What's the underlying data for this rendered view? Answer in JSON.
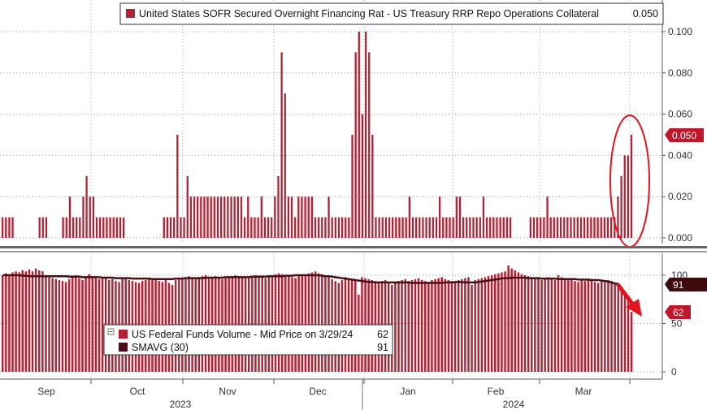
{
  "chart_data": [
    {
      "id": "top",
      "type": "bar",
      "title": "United States SOFR Secured Overnight Financing Rat - US Treasury RRP Repo Operations Collateral",
      "legend": [
        {
          "label": "United States SOFR Secured Overnight Financing Rat - US Treasury RRP Repo Operations Collateral",
          "value": "0.050",
          "color": "#b22234"
        }
      ],
      "last_value_tag": {
        "label": "0.050",
        "value": 0.05,
        "color": "#c0182b"
      },
      "ylim": [
        0,
        0.105
      ],
      "yticks": [
        0.0,
        0.02,
        0.04,
        0.06,
        0.08,
        0.1
      ],
      "ytick_labels": [
        "0.000",
        "0.020",
        "0.040",
        "0.060",
        "0.080",
        "0.100"
      ],
      "annotation": "red ellipse around latest spike",
      "values": [
        0.01,
        0.01,
        0.01,
        0.01,
        0,
        0,
        0,
        0,
        0,
        0,
        0,
        0.01,
        0.01,
        0.01,
        0,
        0,
        0,
        0,
        0.01,
        0.01,
        0.02,
        0.01,
        0.01,
        0.01,
        0.02,
        0.03,
        0.02,
        0.02,
        0.01,
        0.01,
        0.01,
        0.01,
        0.01,
        0.01,
        0.01,
        0.01,
        0.01,
        0,
        0,
        0,
        0,
        0,
        0,
        0,
        0,
        0,
        0,
        0,
        0.01,
        0.01,
        0.01,
        0.01,
        0.05,
        0.01,
        0.01,
        0.03,
        0.02,
        0.02,
        0.02,
        0.02,
        0.02,
        0.02,
        0.02,
        0.02,
        0.02,
        0.02,
        0.02,
        0.02,
        0.02,
        0.02,
        0.02,
        0.02,
        0.01,
        0.02,
        0.01,
        0.01,
        0.01,
        0.02,
        0.01,
        0.01,
        0.01,
        0.02,
        0.03,
        0.09,
        0.07,
        0.02,
        0.02,
        0.01,
        0.02,
        0.02,
        0.02,
        0.02,
        0.02,
        0.01,
        0.01,
        0.01,
        0.01,
        0.02,
        0.01,
        0.01,
        0.01,
        0.01,
        0.01,
        0.01,
        0.05,
        0.09,
        0.1,
        0.06,
        0.1,
        0.09,
        0.05,
        0.01,
        0.01,
        0.01,
        0.01,
        0.01,
        0.01,
        0.01,
        0.01,
        0.01,
        0.01,
        0.02,
        0.01,
        0.01,
        0.01,
        0.01,
        0.01,
        0.01,
        0.01,
        0.01,
        0.02,
        0.01,
        0.01,
        0.01,
        0.01,
        0.02,
        0.02,
        0.01,
        0.01,
        0.01,
        0.01,
        0.01,
        0.01,
        0.02,
        0.01,
        0.01,
        0.01,
        0.01,
        0.01,
        0.01,
        0.01,
        0.01,
        0,
        0,
        0,
        0,
        0,
        0.01,
        0.01,
        0.01,
        0.01,
        0.01,
        0.02,
        0.01,
        0.01,
        0.01,
        0.01,
        0.01,
        0.01,
        0.01,
        0.01,
        0.01,
        0.01,
        0.01,
        0.01,
        0.01,
        0.01,
        0.01,
        0.01,
        0.01,
        0.01,
        0.01,
        0.01,
        0.02,
        0.03,
        0.04,
        0.04,
        0.05
      ]
    },
    {
      "id": "bottom",
      "type": "bar",
      "legend": [
        {
          "label": "US Federal Funds Volume - Mid Price on 3/29/24",
          "value": "62",
          "color": "#b22234"
        },
        {
          "label": "SMAVG (30)",
          "value": "91",
          "color": "#4a0f14"
        }
      ],
      "last_value_tags": [
        {
          "label": "91",
          "value": 91,
          "color": "#3d0a0e"
        },
        {
          "label": "62",
          "value": 62,
          "color": "#c0182b"
        }
      ],
      "ylim": [
        -5,
        125
      ],
      "yticks": [
        0,
        50,
        100
      ],
      "ytick_labels": [
        "0",
        "50",
        "100"
      ],
      "annotation": "red arrow pointing down to latest value",
      "values": [
        100,
        102,
        101,
        103,
        104,
        103,
        105,
        104,
        106,
        104,
        107,
        105,
        104,
        100,
        98,
        97,
        96,
        95,
        94,
        93,
        96,
        98,
        100,
        97,
        95,
        98,
        101,
        99,
        97,
        96,
        98,
        97,
        95,
        96,
        94,
        93,
        97,
        96,
        95,
        94,
        93,
        92,
        94,
        95,
        96,
        97,
        95,
        94,
        93,
        95,
        92,
        90,
        95,
        96,
        97,
        98,
        99,
        97,
        96,
        98,
        99,
        100,
        98,
        97,
        99,
        98,
        96,
        97,
        98,
        99,
        100,
        99,
        98,
        97,
        98,
        99,
        100,
        99,
        98,
        97,
        99,
        100,
        101,
        102,
        101,
        100,
        99,
        98,
        97,
        99,
        100,
        101,
        102,
        103,
        104,
        102,
        101,
        100,
        98,
        96,
        94,
        92,
        95,
        98,
        97,
        95,
        96,
        80,
        98,
        97,
        96,
        95,
        94,
        93,
        94,
        95,
        92,
        90,
        93,
        94,
        95,
        96,
        94,
        95,
        96,
        97,
        95,
        94,
        93,
        95,
        96,
        97,
        98,
        96,
        95,
        94,
        93,
        95,
        96,
        97,
        98,
        90,
        95,
        96,
        97,
        98,
        99,
        100,
        101,
        102,
        103,
        104,
        110,
        107,
        105,
        103,
        101,
        100,
        99,
        98,
        97,
        96,
        95,
        97,
        98,
        96,
        95,
        100,
        98,
        97,
        95,
        96,
        94,
        93,
        95,
        94,
        96,
        95,
        93,
        92,
        94,
        93,
        95,
        94,
        92,
        91,
        88,
        80,
        75,
        62
      ],
      "sma": [
        100,
        100,
        100,
        100,
        100,
        100,
        99.5,
        99.5,
        99,
        99,
        99,
        99,
        99,
        99,
        99,
        99,
        99,
        99,
        99,
        99,
        98.5,
        98.5,
        98.5,
        98.5,
        98,
        98,
        98,
        98,
        98,
        98,
        97.5,
        97.5,
        97.5,
        97.5,
        97,
        97,
        97,
        97,
        97,
        96.5,
        96.5,
        96.5,
        96.5,
        96.5,
        96.5,
        96,
        96,
        96,
        96,
        96,
        96,
        96,
        96.5,
        96.5,
        96.5,
        97,
        97,
        97,
        97,
        97,
        97,
        97.5,
        97.5,
        97.5,
        97.5,
        97.5,
        97.5,
        98,
        98,
        98,
        98,
        98,
        98,
        98,
        98,
        98.5,
        98.5,
        98.5,
        98.5,
        98.5,
        99,
        99,
        99,
        99,
        99,
        99.5,
        99.5,
        99.5,
        100,
        100,
        100,
        100,
        100,
        100,
        100,
        100,
        99.5,
        99,
        99,
        98.5,
        98,
        97.5,
        97,
        96.5,
        96,
        95.5,
        95,
        94.5,
        94,
        93.5,
        93,
        93,
        92.5,
        92.5,
        92.5,
        92.5,
        92.5,
        92.5,
        92.5,
        92.5,
        92.5,
        92.5,
        92.5,
        92,
        92,
        92,
        92,
        92,
        92,
        92,
        92,
        92,
        92,
        92.5,
        92.5,
        92.5,
        93,
        93,
        93,
        92.5,
        92.5,
        92.5,
        92.5,
        93,
        93.5,
        94,
        94.5,
        95,
        95.5,
        96,
        96.5,
        97,
        97,
        97.5,
        97.5,
        97.5,
        97.5,
        97.5,
        97,
        97,
        97,
        97,
        96.5,
        96.5,
        96.5,
        96.5,
        96.5,
        96,
        96,
        96,
        96,
        96,
        96,
        95.5,
        95.5,
        95.5,
        95.5,
        95,
        95,
        95,
        94.5,
        94,
        93.5,
        92.5,
        91.5,
        91
      ]
    }
  ],
  "x_axis": {
    "month_labels": [
      "Sep",
      "Oct",
      "Nov",
      "Dec",
      "Jan",
      "Feb",
      "Mar"
    ],
    "year_labels": [
      "2023",
      "2024"
    ]
  }
}
